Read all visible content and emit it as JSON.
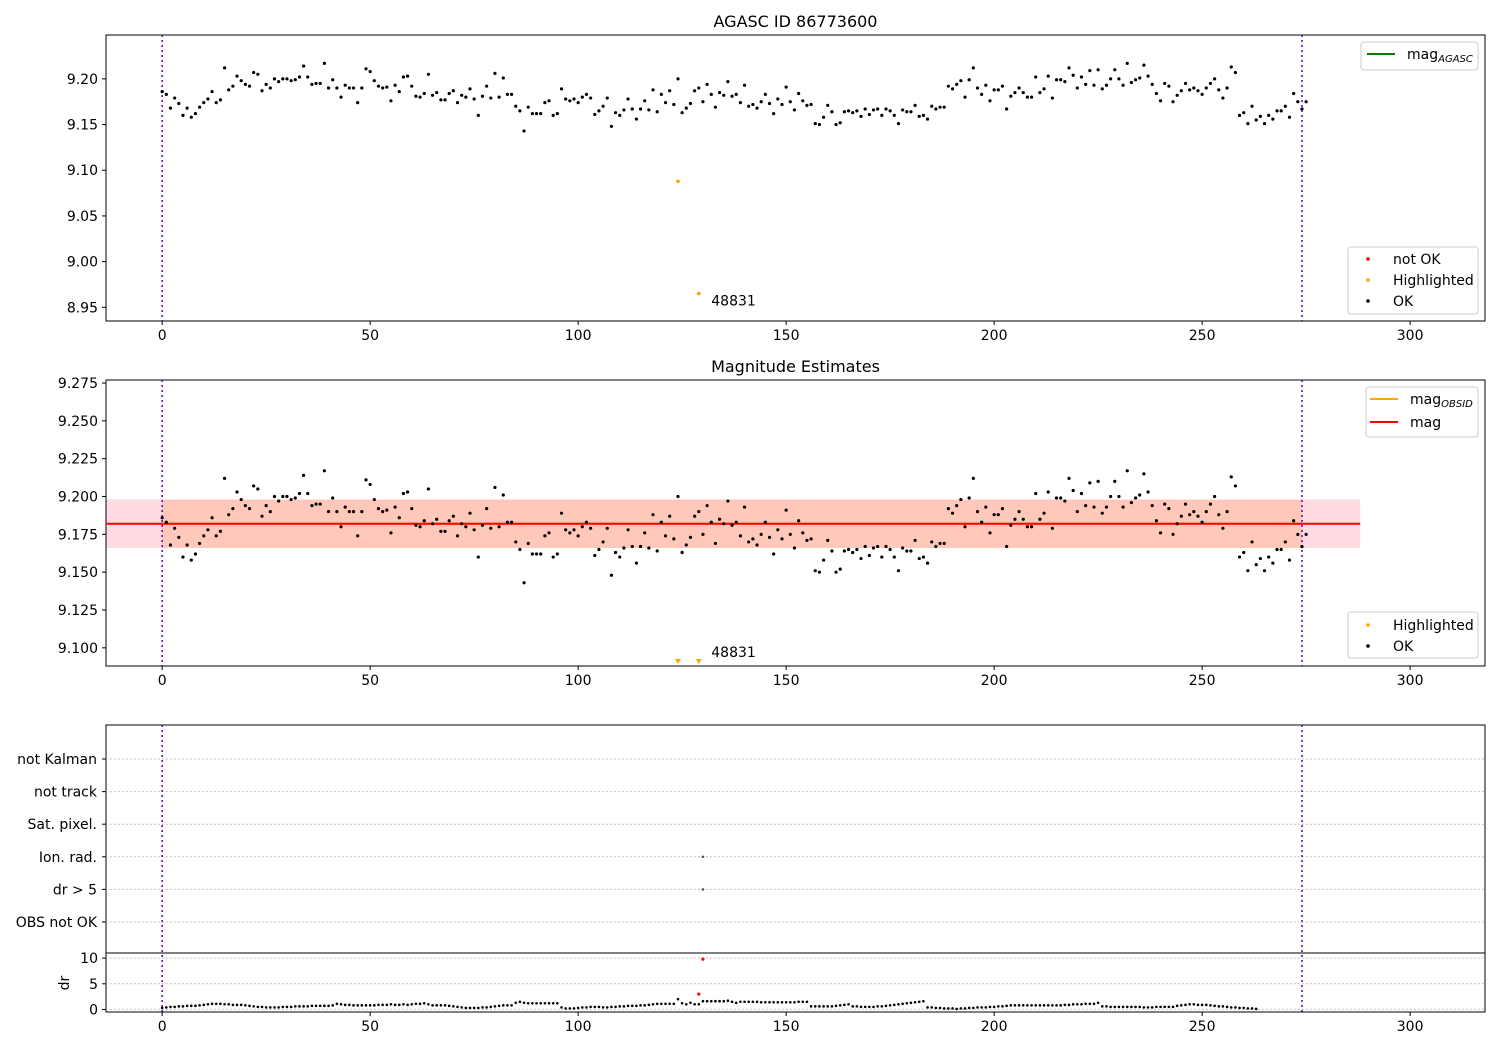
{
  "chart_data": [
    {
      "type": "scatter",
      "title": "AGASC ID 86773600",
      "xlabel": "",
      "ylabel": "",
      "xlim": [
        -13.5,
        318
      ],
      "ylim": [
        8.935,
        9.248
      ],
      "xticks": [
        0,
        50,
        100,
        150,
        200,
        250,
        300
      ],
      "yticks": [
        8.95,
        9.0,
        9.05,
        9.1,
        9.15,
        9.2
      ],
      "ytick_labels": [
        "8.95",
        "9.00",
        "9.05",
        "9.10",
        "9.15",
        "9.20"
      ],
      "vlines": [
        0,
        274
      ],
      "lines": [
        {
          "name": "mag_AGASC",
          "color": "#008000",
          "y": null
        }
      ],
      "legend_lines": [
        {
          "name": "mag",
          "sub": "AGASC",
          "color": "#008000"
        }
      ],
      "legend_points": [
        {
          "name": "not OK",
          "color": "#ff0000"
        },
        {
          "name": "Highlighted",
          "color": "#ffa500"
        },
        {
          "name": "OK",
          "color": "#000000"
        }
      ],
      "annotations": [
        {
          "text": "48831",
          "x": 132,
          "y": 8.955
        }
      ],
      "highlighted": [
        {
          "x": 124,
          "y": 9.088
        },
        {
          "x": 129,
          "y": 8.965
        }
      ],
      "ok_series": {
        "x_start": 0,
        "values": [
          9.186,
          9.183,
          9.168,
          9.179,
          9.173,
          9.16,
          9.168,
          9.158,
          9.162,
          9.169,
          9.174,
          9.178,
          9.186,
          9.174,
          9.177,
          9.212,
          9.188,
          9.192,
          9.203,
          9.198,
          9.194,
          9.192,
          9.207,
          9.205,
          9.187,
          9.194,
          9.19,
          9.2,
          9.197,
          9.2,
          9.2,
          9.198,
          9.199,
          9.202,
          9.214,
          9.202,
          9.194,
          9.195,
          9.195,
          9.217,
          9.19,
          9.199,
          9.19,
          9.18,
          9.193,
          9.19,
          9.19,
          9.174,
          9.19,
          9.211,
          9.208,
          9.198,
          9.192,
          9.19,
          9.191,
          9.176,
          9.193,
          9.186,
          9.202,
          9.203,
          9.192,
          9.181,
          9.18,
          9.184,
          9.205,
          9.182,
          9.185,
          9.177,
          9.177,
          9.184,
          9.187,
          9.174,
          9.182,
          9.18,
          9.189,
          9.178,
          9.16,
          9.181,
          9.192,
          9.179,
          9.206,
          9.18,
          9.201,
          9.183,
          9.183,
          9.17,
          9.165,
          9.143,
          9.169,
          9.162,
          9.162,
          9.162,
          9.174,
          9.176,
          9.16,
          9.162,
          9.189,
          9.178,
          9.176,
          9.178,
          9.174,
          9.18,
          9.183,
          9.179,
          9.161,
          9.165,
          9.17,
          9.179,
          9.148,
          9.163,
          9.16,
          9.166,
          9.178,
          9.167,
          9.156,
          9.167,
          9.176,
          9.166,
          9.188,
          9.164,
          9.183,
          9.174,
          9.187,
          9.172,
          9.2,
          9.163,
          9.168,
          9.173,
          9.187,
          9.19,
          9.175,
          9.194,
          9.183,
          9.169,
          9.185,
          9.182,
          9.197,
          9.181,
          9.183,
          9.174,
          9.193,
          9.17,
          9.172,
          9.168,
          9.175,
          9.183,
          9.173,
          9.162,
          9.178,
          9.172,
          9.191,
          9.175,
          9.166,
          9.184,
          9.176,
          9.171,
          9.172,
          9.151,
          9.15,
          9.158,
          9.171,
          9.164,
          9.15,
          9.152,
          9.164,
          9.165,
          9.163,
          9.165,
          9.159,
          9.167,
          9.161,
          9.166,
          9.167,
          9.16,
          9.167,
          9.165,
          9.16,
          9.151,
          9.166,
          9.164,
          9.164,
          9.171,
          9.159,
          9.16,
          9.156,
          9.17,
          9.167,
          9.169,
          9.169,
          9.192,
          9.189,
          9.194,
          9.198,
          9.18,
          9.199,
          9.212,
          9.19,
          9.183,
          9.193,
          9.176,
          9.188,
          9.188,
          9.192,
          9.167,
          9.181,
          9.185,
          9.19,
          9.185,
          9.18,
          9.18,
          9.202,
          9.185,
          9.189,
          9.203,
          9.179,
          9.199,
          9.199,
          9.197,
          9.212,
          9.204,
          9.19,
          9.202,
          9.194,
          9.209,
          9.193,
          9.21,
          9.189,
          9.193,
          9.2,
          9.21,
          9.2,
          9.193,
          9.217,
          9.196,
          9.199,
          9.201,
          9.215,
          9.203,
          9.194,
          9.184,
          9.176,
          9.195,
          9.192,
          9.175,
          9.182,
          9.187,
          9.195,
          9.188,
          9.19,
          9.187,
          9.183,
          9.19,
          9.195,
          9.2,
          9.188,
          9.179,
          9.19,
          9.213,
          9.207,
          9.16,
          9.163,
          9.151,
          9.17,
          9.155,
          9.159,
          9.151,
          9.16,
          9.156,
          9.165,
          9.165,
          9.17,
          9.158,
          9.184,
          9.175,
          9.167,
          9.175
        ]
      }
    },
    {
      "type": "scatter",
      "title": "Magnitude Estimates",
      "xlabel": "",
      "ylabel": "",
      "xlim": [
        -13.5,
        318
      ],
      "ylim": [
        9.088,
        9.277
      ],
      "xticks": [
        0,
        50,
        100,
        150,
        200,
        250,
        300
      ],
      "yticks": [
        9.1,
        9.125,
        9.15,
        9.175,
        9.2,
        9.225,
        9.25,
        9.275
      ],
      "ytick_labels": [
        "9.100",
        "9.125",
        "9.150",
        "9.175",
        "9.200",
        "9.225",
        "9.250",
        "9.275"
      ],
      "vlines": [
        0,
        274
      ],
      "mag_line": {
        "y": 9.182,
        "x0": -13.5,
        "x1": 288,
        "color": "#ff0000"
      },
      "mag_obsid_line": {
        "y": 9.182,
        "x0": 0,
        "x1": 274,
        "color": "#ffa500"
      },
      "band_outer": {
        "y0": 9.166,
        "y1": 9.198,
        "x0": -13.5,
        "x1": 288,
        "color": "#ffc0cb"
      },
      "band_inner": {
        "y0": 9.166,
        "y1": 9.198,
        "x0": 0,
        "x1": 274,
        "color": "#ffb89a"
      },
      "legend_lines": [
        {
          "name": "mag",
          "sub": "OBSID",
          "color": "#ffa500"
        },
        {
          "name": "mag",
          "sub": "",
          "color": "#ff0000"
        }
      ],
      "legend_points": [
        {
          "name": "Highlighted",
          "color": "#ffa500"
        },
        {
          "name": "OK",
          "color": "#000000"
        }
      ],
      "annotations": [
        {
          "text": "48831",
          "x": 132,
          "y": 9.096
        }
      ],
      "highlighted_below": [
        {
          "x": 124
        },
        {
          "x": 129
        }
      ],
      "ok_series_ref": 0
    },
    {
      "type": "scatter",
      "title": "",
      "xlabel": "",
      "xlim": [
        -13.5,
        318
      ],
      "xticks": [
        0,
        50,
        100,
        150,
        200,
        250,
        300
      ],
      "flag_labels": [
        "not Kalman",
        "not track",
        "Sat. pixel.",
        "Ion. rad.",
        "dr > 5",
        "OBS not OK"
      ],
      "flag_points": [
        {
          "flag": "Ion. rad.",
          "x": 130
        },
        {
          "flag": "dr > 5",
          "x": 130
        }
      ],
      "vlines": [
        0,
        274
      ],
      "dr_panel": {
        "ylabel": "dr",
        "ylim": [
          -0.5,
          11
        ],
        "yticks": [
          0,
          5,
          10
        ],
        "red_points": [
          {
            "x": 129,
            "y": 3.0
          },
          {
            "x": 130,
            "y": 9.8
          }
        ],
        "values": [
          0.3,
          0.4,
          0.5,
          0.5,
          0.6,
          0.6,
          0.7,
          0.7,
          0.7,
          0.8,
          0.9,
          1.0,
          1.1,
          1.1,
          1.1,
          1.0,
          1.0,
          0.9,
          0.9,
          0.9,
          0.8,
          0.7,
          0.6,
          0.5,
          0.5,
          0.4,
          0.4,
          0.4,
          0.4,
          0.5,
          0.5,
          0.5,
          0.6,
          0.6,
          0.6,
          0.6,
          0.7,
          0.7,
          0.7,
          0.7,
          0.7,
          0.8,
          1.1,
          1.0,
          0.9,
          0.9,
          0.8,
          0.8,
          0.8,
          0.8,
          0.8,
          0.8,
          0.9,
          0.9,
          0.9,
          1.0,
          0.9,
          0.9,
          1.0,
          0.9,
          1.0,
          1.1,
          1.1,
          1.2,
          1.0,
          0.8,
          0.8,
          0.8,
          0.8,
          0.7,
          0.6,
          0.5,
          0.4,
          0.3,
          0.3,
          0.3,
          0.3,
          0.4,
          0.4,
          0.5,
          0.6,
          0.7,
          0.8,
          0.8,
          0.8,
          1.3,
          1.5,
          1.3,
          1.2,
          1.2,
          1.2,
          1.2,
          1.2,
          1.2,
          1.2,
          1.2,
          0.4,
          0.2,
          0.2,
          0.2,
          0.3,
          0.4,
          0.4,
          0.5,
          0.5,
          0.5,
          0.4,
          0.4,
          0.5,
          0.5,
          0.6,
          0.6,
          0.7,
          0.7,
          0.7,
          0.8,
          0.8,
          0.9,
          1.0,
          1.1,
          1.1,
          1.1,
          1.1,
          1.1,
          2.0,
          1.2,
          1.0,
          1.3,
          1.0,
          1.0,
          1.6,
          1.6,
          1.6,
          1.6,
          1.6,
          1.6,
          1.7,
          1.5,
          1.3,
          1.5,
          1.5,
          1.5,
          1.5,
          1.5,
          1.4,
          1.4,
          1.4,
          1.4,
          1.4,
          1.4,
          1.4,
          1.4,
          1.4,
          1.5,
          1.5,
          1.5,
          0.6,
          0.6,
          0.6,
          0.6,
          0.6,
          0.6,
          0.7,
          0.8,
          0.9,
          1.0,
          0.6,
          0.6,
          0.5,
          0.5,
          0.5,
          0.5,
          0.6,
          0.6,
          0.7,
          0.8,
          0.9,
          1.0,
          1.1,
          1.2,
          1.3,
          1.4,
          1.5,
          1.6,
          0.4,
          0.4,
          0.3,
          0.3,
          0.2,
          0.2,
          0.2,
          0.1,
          0.2,
          0.2,
          0.3,
          0.3,
          0.4,
          0.4,
          0.4,
          0.5,
          0.5,
          0.6,
          0.6,
          0.7,
          0.8,
          0.8,
          0.8,
          0.8,
          0.8,
          0.8,
          0.8,
          0.8,
          0.8,
          0.8,
          0.8,
          0.8,
          0.8,
          0.9,
          0.9,
          1.0,
          1.0,
          1.0,
          1.1,
          1.1,
          1.1,
          1.3,
          0.6,
          0.6,
          0.5,
          0.5,
          0.5,
          0.5,
          0.5,
          0.5,
          0.5,
          0.5,
          0.4,
          0.4,
          0.4,
          0.5,
          0.5,
          0.5,
          0.5,
          0.5,
          0.7,
          0.8,
          0.9,
          1.0,
          1.0,
          0.9,
          0.9,
          0.9,
          0.8,
          0.7,
          0.6,
          0.6,
          0.5,
          0.4,
          0.4,
          0.3,
          0.3,
          0.2,
          0.2,
          0.1
        ]
      }
    }
  ]
}
